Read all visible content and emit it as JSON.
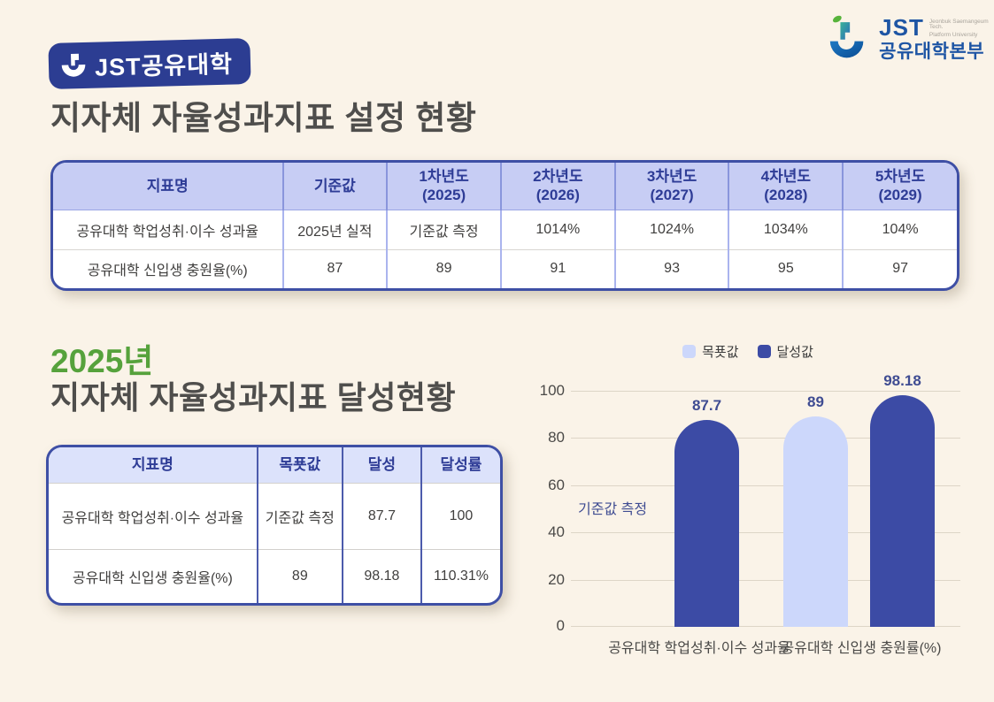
{
  "header": {
    "badge": {
      "label": "JST공유대학"
    },
    "org_logo": {
      "jst": "JST",
      "subtitle_line1": "Jeonbuk Saemangeum Tech.",
      "subtitle_line2": "Platform University",
      "dept": "공유대학본부"
    }
  },
  "section_setting": {
    "title": "지자체 자율성과지표 설정 현황",
    "table": {
      "headers": [
        "지표명",
        "기준값",
        "1차년도\n(2025)",
        "2차년도\n(2026)",
        "3차년도\n(2027)",
        "4차년도\n(2028)",
        "5차년도\n(2029)"
      ],
      "rows": [
        [
          "공유대학 학업성취·이수 성과율",
          "2025년 실적",
          "기준값 측정",
          "1014%",
          "1024%",
          "1034%",
          "104%"
        ],
        [
          "공유대학 신입생 충원율(%)",
          "87",
          "89",
          "91",
          "93",
          "95",
          "97"
        ]
      ]
    }
  },
  "section_achievement": {
    "year": "2025년",
    "title": "지자체 자율성과지표 달성현황",
    "table": {
      "headers": [
        "지표명",
        "목푯값",
        "달성",
        "달성률"
      ],
      "rows": [
        [
          "공유대학 학업성취·이수 성과율",
          "기준값 측정",
          "87.7",
          "100"
        ],
        [
          "공유대학 신입생 충원율(%)",
          "89",
          "98.18",
          "110.31%"
        ]
      ]
    }
  },
  "chart_data": {
    "type": "bar",
    "categories": [
      "공유대학 학업성취·이수 성과율",
      "공유대학 신입생 충원률(%)"
    ],
    "series": [
      {
        "name": "목푯값",
        "color": "#ccd7fb",
        "values": [
          null,
          89
        ]
      },
      {
        "name": "달성값",
        "color": "#3c4ba5",
        "values": [
          87.7,
          98.18
        ]
      }
    ],
    "annotations": [
      {
        "text": "기준값 측정",
        "category_index": 0,
        "series": "목푯값"
      }
    ],
    "title": "",
    "xlabel": "",
    "ylabel": "",
    "ylim": [
      0,
      100
    ],
    "yticks": [
      100,
      80,
      60,
      40,
      20,
      0
    ],
    "legend_position": "top",
    "grid": "horizontal"
  },
  "colors": {
    "background": "#faf3e8",
    "badge_navy": "#2c3d92",
    "table_border": "#3e4fa5",
    "table1_header_fill": "#c7cdf4",
    "table2_header_fill": "#dce2fb",
    "header_text": "#2e3c96",
    "title_gray": "#4f4e4c",
    "year_green": "#56a23c",
    "bar_dark": "#3c4ba5",
    "bar_light": "#ccd7fb",
    "logo_blue": "#1e55a4"
  }
}
